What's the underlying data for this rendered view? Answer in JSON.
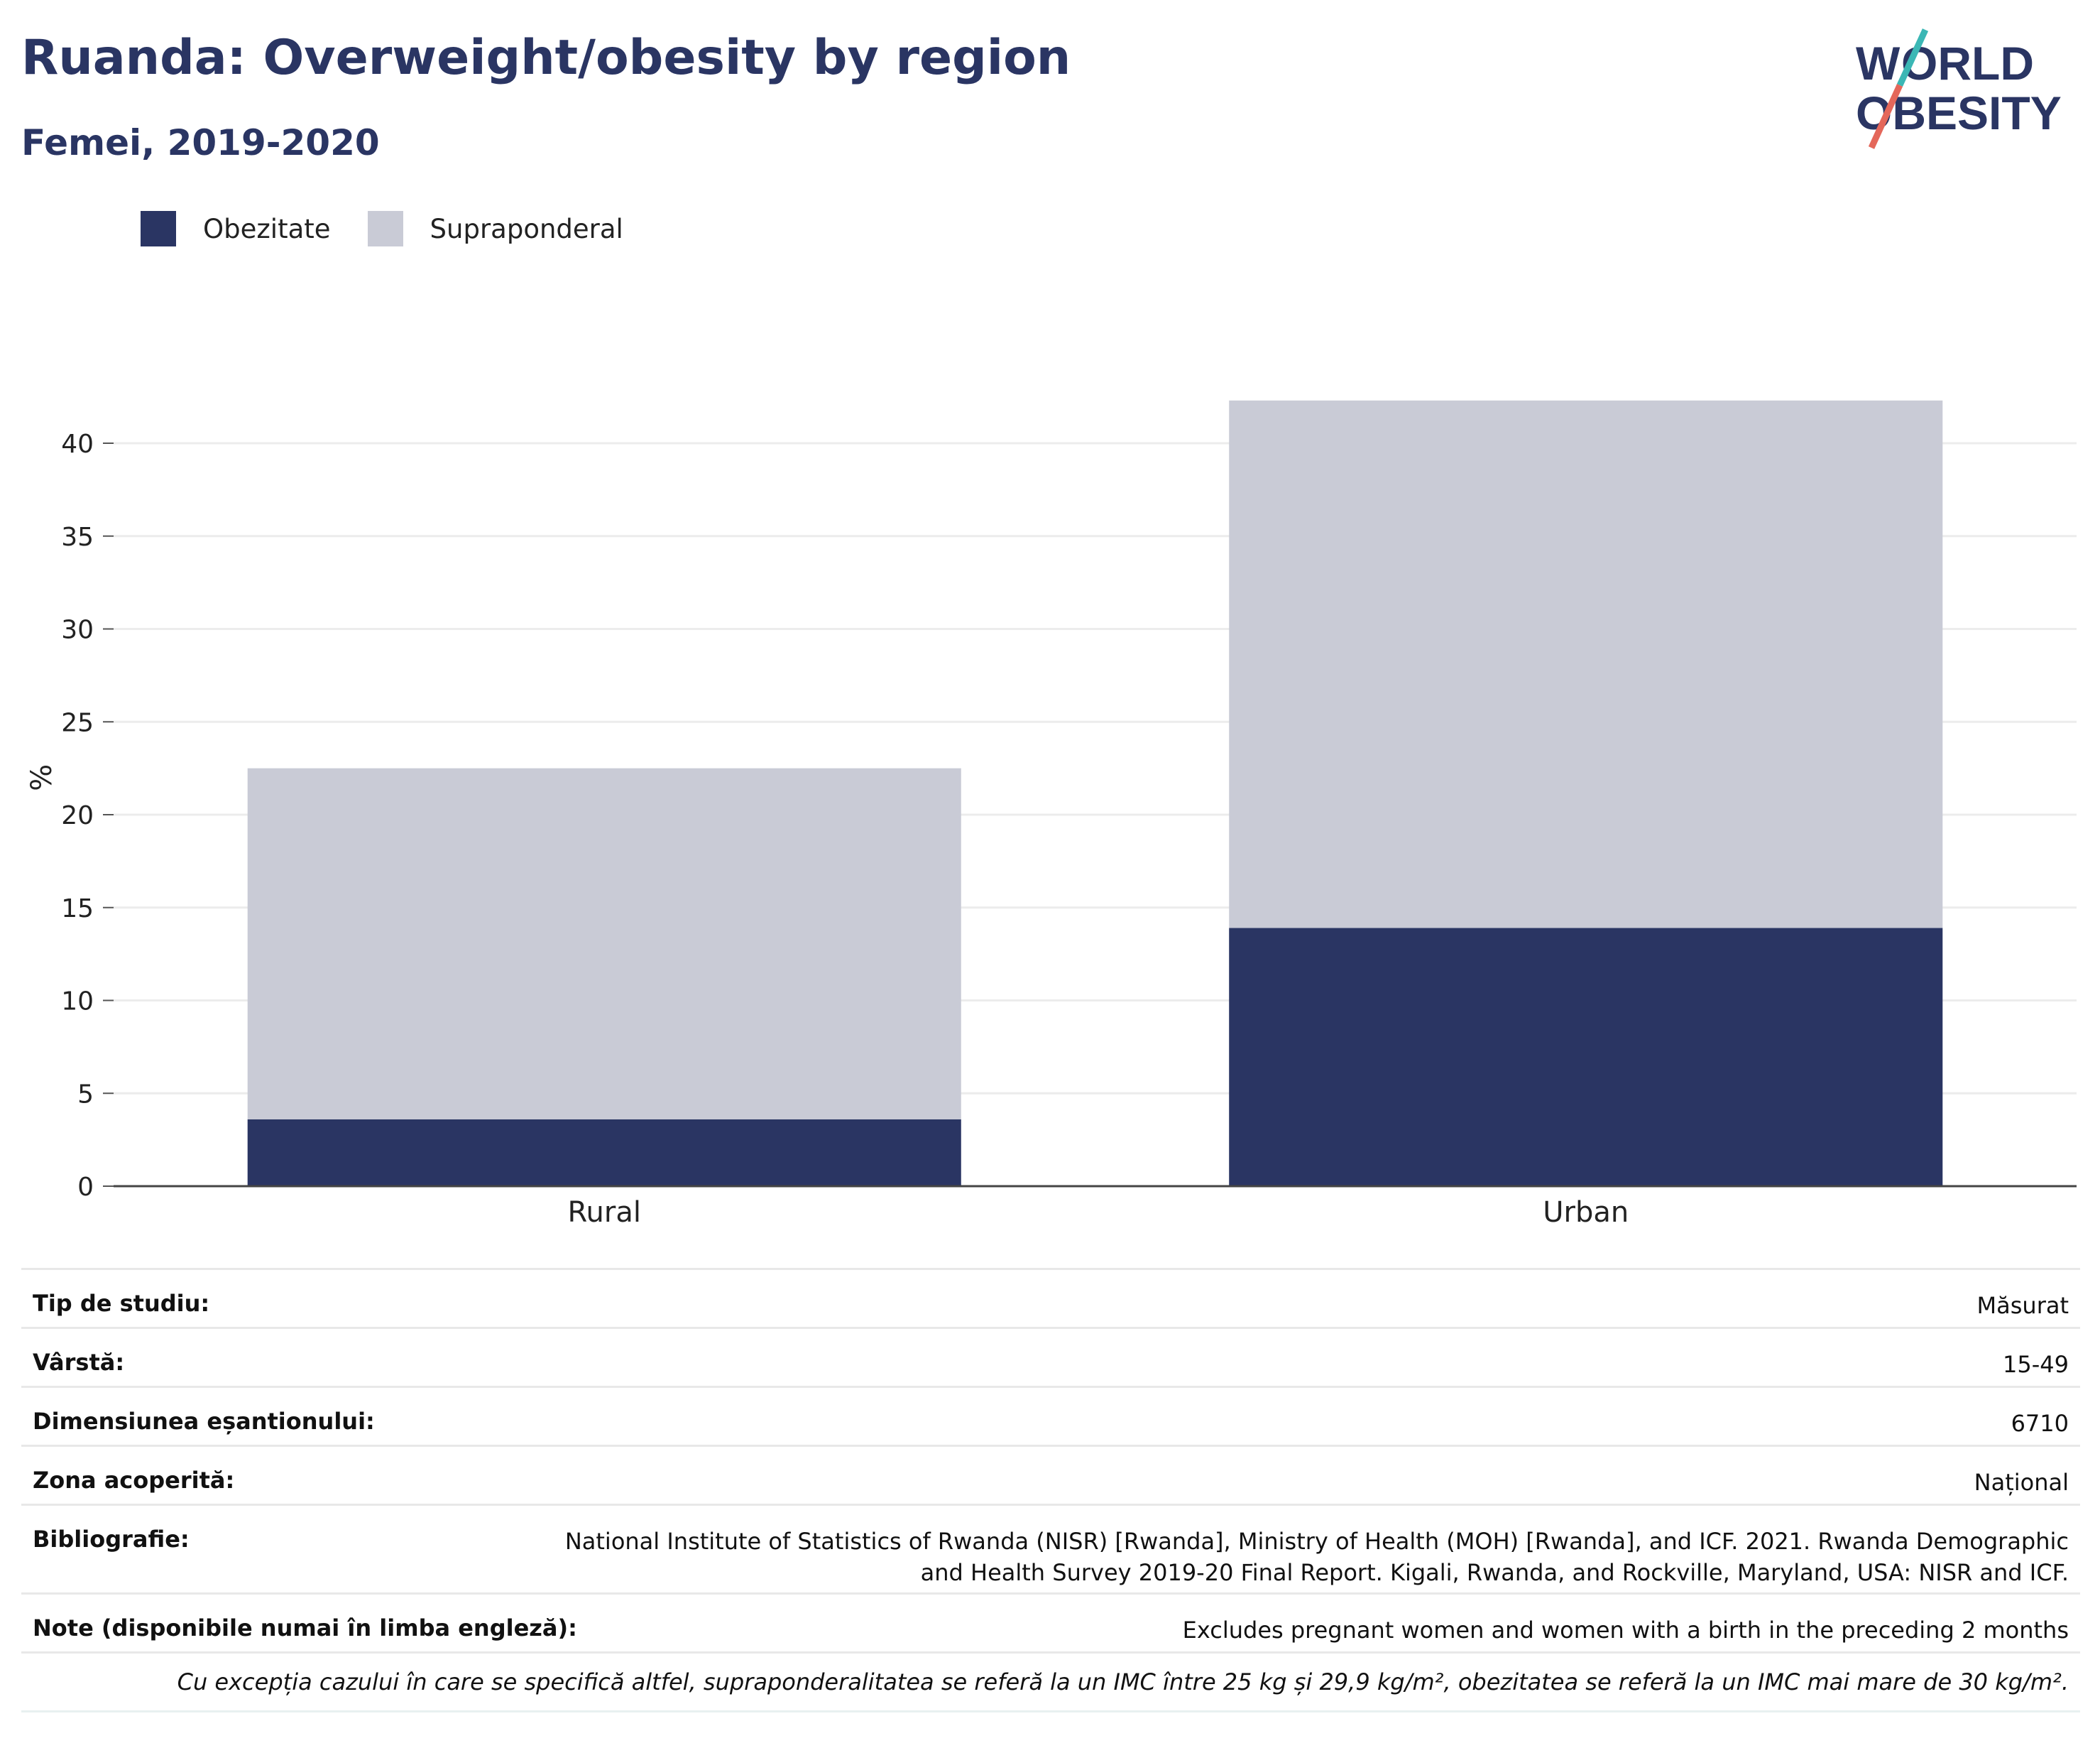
{
  "header": {
    "title": "Ruanda: Overweight/obesity by region",
    "subtitle": "Femei, 2019-2020"
  },
  "logo": {
    "line1": "WORLD",
    "line2": "OBESITY"
  },
  "colors": {
    "obesity": "#2a3563",
    "overweight": "#c9cbd6",
    "title": "#2a3563",
    "accent_teal": "#3bb7b5",
    "accent_red": "#e4675a"
  },
  "legend": [
    {
      "label": "Obezitate",
      "color": "#2a3563"
    },
    {
      "label": "Supraponderal",
      "color": "#c9cbd6"
    }
  ],
  "chart_data": {
    "type": "bar",
    "stacked": true,
    "categories": [
      "Rural",
      "Urban"
    ],
    "series": [
      {
        "name": "Obezitate",
        "values": [
          3.6,
          13.9
        ]
      },
      {
        "name": "Supraponderal",
        "values": [
          18.9,
          28.4
        ]
      }
    ],
    "ylabel": "%",
    "ylim": [
      0,
      42.5
    ],
    "yticks": [
      0,
      5,
      10,
      15,
      20,
      25,
      30,
      35,
      40
    ],
    "grid": true,
    "legend_position": "top-left"
  },
  "info": {
    "study_type": {
      "label": "Tip de studiu:",
      "value": "Măsurat"
    },
    "age": {
      "label": "Vârstă:",
      "value": "15-49"
    },
    "sample": {
      "label": "Dimensiunea eșantionului:",
      "value": "6710"
    },
    "area": {
      "label": "Zona acoperită:",
      "value": "Național"
    },
    "bibliography": {
      "label": "Bibliografie:",
      "value_line1": "National Institute of Statistics of Rwanda (NISR) [Rwanda], Ministry of Health (MOH) [Rwanda], and ICF. 2021. Rwanda Demographic",
      "value_line2": "and Health Survey 2019-20 Final Report. Kigali, Rwanda, and Rockville, Maryland, USA: NISR and ICF."
    },
    "notes": {
      "label": "Note (disponibile numai în limba engleză):",
      "value": "Excludes pregnant women and women with a birth in the preceding 2 months"
    },
    "footnote": "Cu excepția cazului în care se specifică altfel, supraponderalitatea se referă la un IMC între 25 kg și 29,9 kg/m², obezitatea se referă la un IMC mai mare de 30 kg/m²."
  }
}
